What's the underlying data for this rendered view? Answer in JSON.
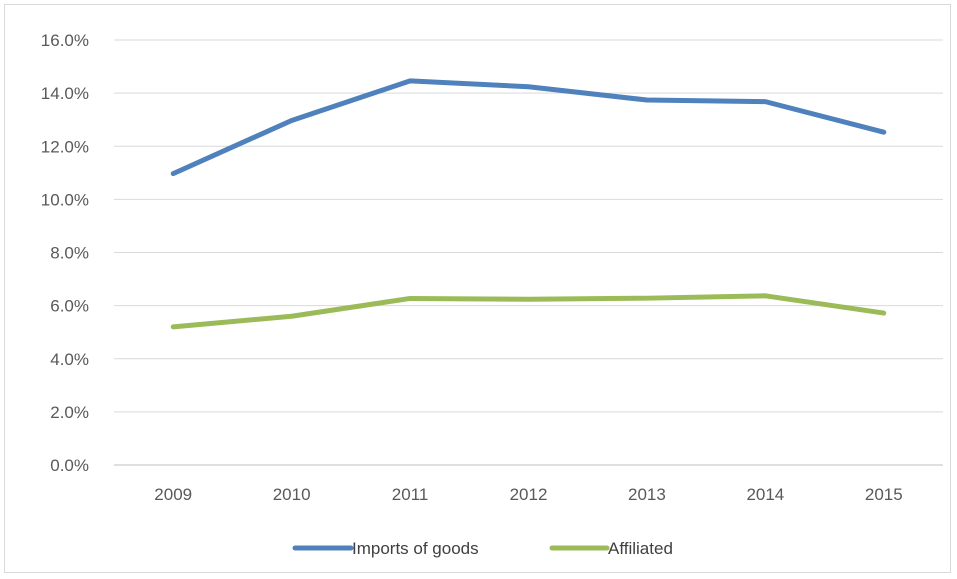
{
  "chart_data": {
    "type": "line",
    "title": "",
    "xlabel": "",
    "ylabel": "",
    "categories": [
      "2009",
      "2010",
      "2011",
      "2012",
      "2013",
      "2014",
      "2015"
    ],
    "ylim": [
      0,
      0.16
    ],
    "yticks": [
      0,
      0.02,
      0.04,
      0.06,
      0.08,
      0.1,
      0.12,
      0.14,
      0.16
    ],
    "ytick_labels": [
      "0.0%",
      "2.0%",
      "4.0%",
      "6.0%",
      "8.0%",
      "10.0%",
      "12.0%",
      "14.0%",
      "16.0%"
    ],
    "grid": "horizontal",
    "legend_position": "bottom",
    "series": [
      {
        "name": "Imports of goods",
        "color": "#4f81bd",
        "values": [
          0.1097,
          0.1297,
          0.1446,
          0.1424,
          0.1374,
          0.1368,
          0.1253
        ]
      },
      {
        "name": "Affiliated",
        "color": "#9bbb59",
        "values": [
          0.052,
          0.056,
          0.0627,
          0.0624,
          0.0628,
          0.0637,
          0.0572
        ]
      }
    ]
  }
}
